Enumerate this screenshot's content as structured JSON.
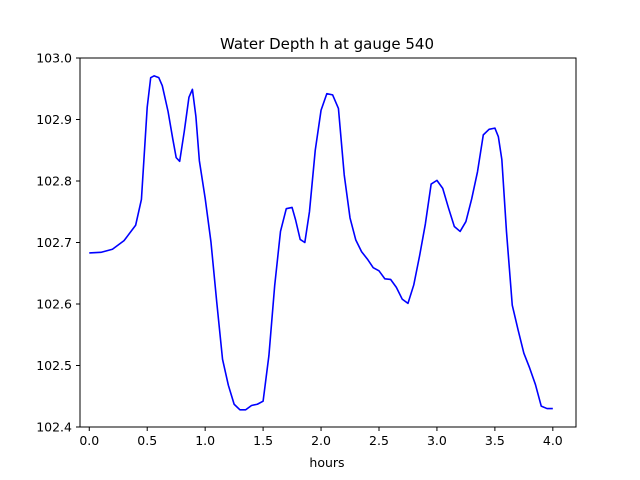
{
  "chart_data": {
    "type": "line",
    "title": "Water Depth h at gauge 540",
    "xlabel": "hours",
    "ylabel": "",
    "xlim": [
      -0.08,
      4.2
    ],
    "ylim": [
      102.4,
      103.0
    ],
    "x_ticks": [
      0.0,
      0.5,
      1.0,
      1.5,
      2.0,
      2.5,
      3.0,
      3.5,
      4.0
    ],
    "x_tick_labels": [
      "0.0",
      "0.5",
      "1.0",
      "1.5",
      "2.0",
      "2.5",
      "3.0",
      "3.5",
      "4.0"
    ],
    "y_ticks": [
      102.4,
      102.5,
      102.6,
      102.7,
      102.8,
      102.9,
      103.0
    ],
    "y_tick_labels": [
      "102.4",
      "102.5",
      "102.6",
      "102.7",
      "102.8",
      "102.9",
      "103.0"
    ],
    "grid": false,
    "series": [
      {
        "color": "#0000ff",
        "x": [
          0.0,
          0.1,
          0.2,
          0.3,
          0.4,
          0.45,
          0.5,
          0.53,
          0.56,
          0.6,
          0.63,
          0.68,
          0.72,
          0.75,
          0.78,
          0.82,
          0.86,
          0.89,
          0.92,
          0.95,
          1.0,
          1.05,
          1.1,
          1.15,
          1.2,
          1.25,
          1.3,
          1.35,
          1.4,
          1.45,
          1.5,
          1.55,
          1.6,
          1.65,
          1.7,
          1.75,
          1.78,
          1.82,
          1.86,
          1.9,
          1.95,
          2.0,
          2.05,
          2.1,
          2.15,
          2.2,
          2.25,
          2.3,
          2.35,
          2.4,
          2.45,
          2.5,
          2.55,
          2.6,
          2.65,
          2.7,
          2.75,
          2.8,
          2.85,
          2.9,
          2.95,
          3.0,
          3.05,
          3.1,
          3.15,
          3.2,
          3.25,
          3.3,
          3.35,
          3.4,
          3.45,
          3.5,
          3.53,
          3.56,
          3.6,
          3.65,
          3.7,
          3.75,
          3.8,
          3.85,
          3.9,
          3.95,
          4.0
        ],
        "values": [
          102.683,
          102.684,
          102.689,
          102.703,
          102.728,
          102.77,
          102.92,
          102.968,
          102.971,
          102.968,
          102.955,
          102.913,
          102.869,
          102.838,
          102.832,
          102.881,
          102.936,
          102.949,
          102.905,
          102.833,
          102.772,
          102.701,
          102.603,
          102.51,
          102.468,
          102.437,
          102.428,
          102.428,
          102.435,
          102.437,
          102.442,
          102.516,
          102.63,
          102.718,
          102.755,
          102.757,
          102.737,
          102.705,
          102.7,
          102.75,
          102.85,
          102.915,
          102.942,
          102.94,
          102.918,
          102.81,
          102.74,
          102.704,
          102.685,
          102.673,
          102.659,
          102.654,
          102.641,
          102.64,
          102.627,
          102.608,
          102.601,
          102.631,
          102.678,
          102.73,
          102.795,
          102.801,
          102.788,
          102.756,
          102.726,
          102.718,
          102.734,
          102.771,
          102.815,
          102.875,
          102.884,
          102.886,
          102.872,
          102.835,
          102.718,
          102.598,
          102.558,
          102.52,
          102.496,
          102.469,
          102.434,
          102.43,
          102.43
        ]
      }
    ]
  }
}
